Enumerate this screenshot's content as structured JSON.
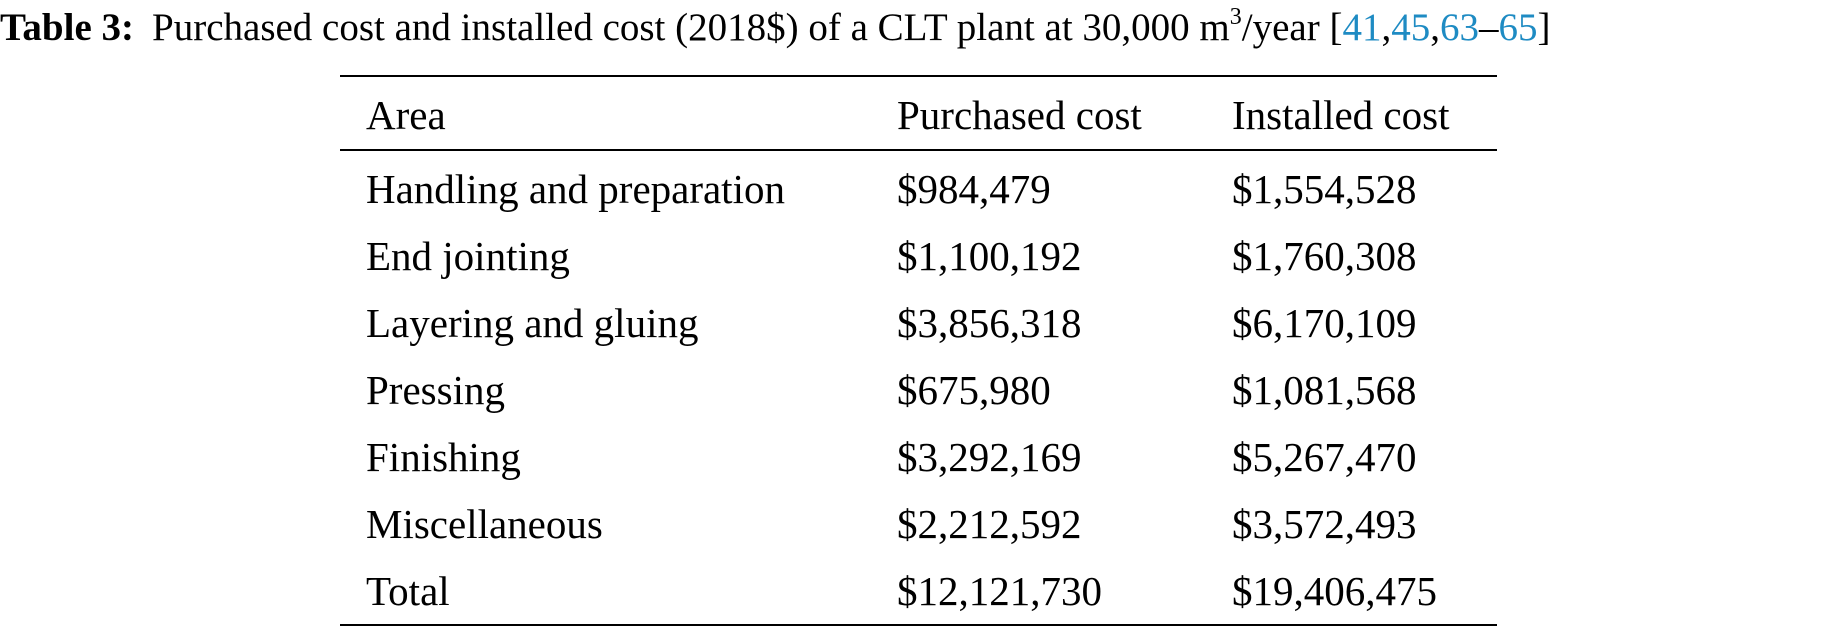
{
  "caption": {
    "label": "Table 3:",
    "text_before_sup": "Purchased cost and installed cost (2018$) of a CLT plant at 30,000 m",
    "superscript": "3",
    "text_after_sup": "/year [",
    "refs": [
      "41",
      "45",
      "63",
      "65"
    ],
    "ref_sep_1": ",",
    "ref_sep_2": ",",
    "ref_sep_3": "–",
    "closing": "]"
  },
  "table": {
    "headers": [
      "Area",
      "Purchased cost",
      "Installed cost"
    ],
    "rows": [
      {
        "area": "Handling and preparation",
        "purchased": "$984,479",
        "installed": "$1,554,528"
      },
      {
        "area": "End jointing",
        "purchased": "$1,100,192",
        "installed": "$1,760,308"
      },
      {
        "area": "Layering and gluing",
        "purchased": "$3,856,318",
        "installed": "$6,170,109"
      },
      {
        "area": "Pressing",
        "purchased": "$675,980",
        "installed": "$1,081,568"
      },
      {
        "area": "Finishing",
        "purchased": "$3,292,169",
        "installed": "$5,267,470"
      },
      {
        "area": "Miscellaneous",
        "purchased": "$2,212,592",
        "installed": "$3,572,493"
      },
      {
        "area": "Total",
        "purchased": "$12,121,730",
        "installed": "$19,406,475"
      }
    ]
  },
  "colors": {
    "text": "#000000",
    "reference_link": "#1e8bc3"
  }
}
